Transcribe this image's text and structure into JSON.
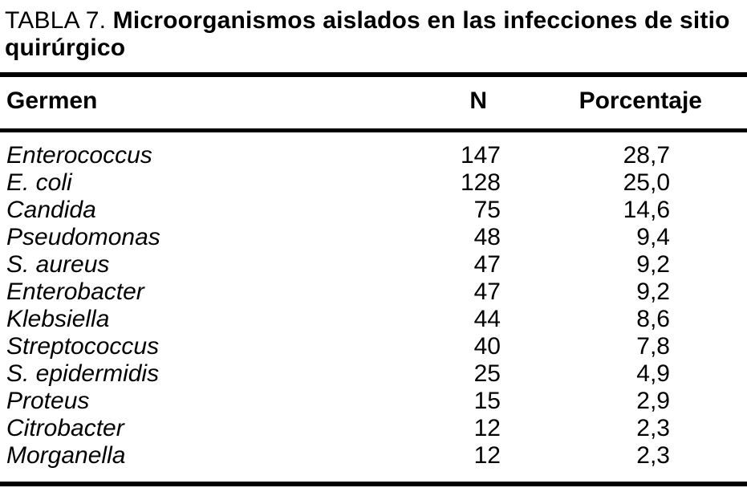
{
  "page": {
    "background": "#ffffff",
    "text_color": "#000000"
  },
  "caption": {
    "label": "TABLA 7.",
    "title": "Microorganismos aislados en las infecciones de sitio quirúrgico"
  },
  "chart_data": {
    "type": "table",
    "title": "TABLA 7. Microorganismos aislados en las infecciones de sitio quirúrgico",
    "columns": [
      "Germen",
      "N",
      "Porcentaje"
    ],
    "rows": [
      [
        "Enterococcus",
        "147",
        "28,7"
      ],
      [
        "E. coli",
        "128",
        "25,0"
      ],
      [
        "Candida",
        "75",
        "14,6"
      ],
      [
        "Pseudomonas",
        "48",
        "9,4"
      ],
      [
        "S. aureus",
        "47",
        "9,2"
      ],
      [
        "Enterobacter",
        "47",
        "9,2"
      ],
      [
        "Klebsiella",
        "44",
        "8,6"
      ],
      [
        "Streptococcus",
        "40",
        "7,8"
      ],
      [
        "S. epidermidis",
        "25",
        "4,9"
      ],
      [
        "Proteus",
        "15",
        "2,9"
      ],
      [
        "Citrobacter",
        "12",
        "2,3"
      ],
      [
        "Morganella",
        "12",
        "2,3"
      ]
    ]
  }
}
